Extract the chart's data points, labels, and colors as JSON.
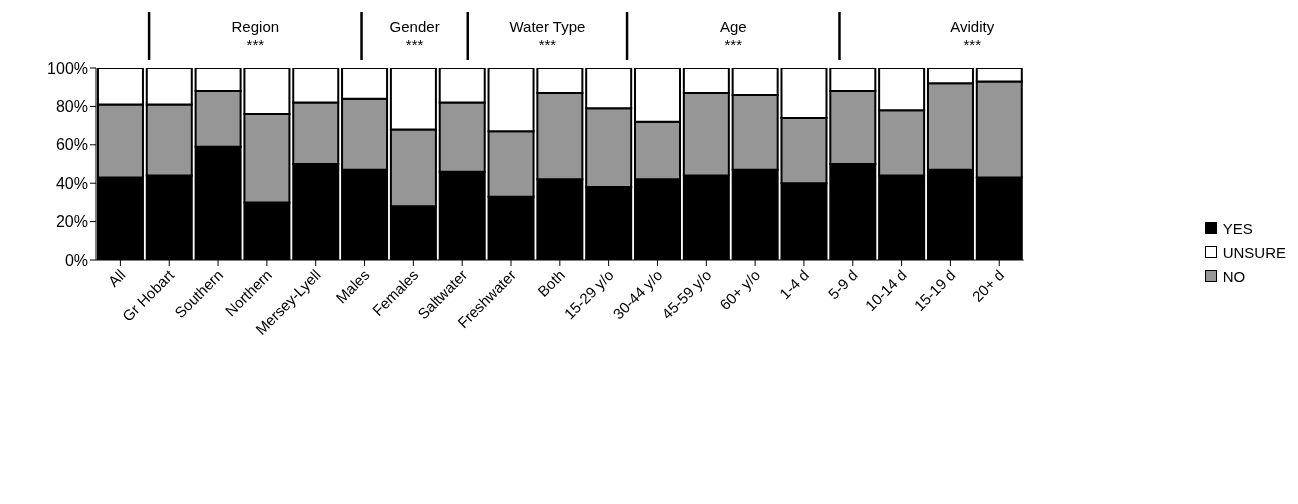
{
  "chart_data": {
    "type": "bar",
    "stacked": true,
    "categories": [
      "All",
      "Gr Hobart",
      "Southern",
      "Northern",
      "Mersey-Lyell",
      "Males",
      "Females",
      "Saltwater",
      "Freshwater",
      "Both",
      "15-29 y/o",
      "30-44 y/o",
      "45-59 y/o",
      "60+ y/o",
      "1-4 d",
      "5-9 d",
      "10-14 d",
      "15-19 d",
      "20+ d"
    ],
    "series": [
      {
        "name": "YES",
        "color": "#000000",
        "values": [
          43,
          44,
          59,
          30,
          50,
          47,
          28,
          46,
          33,
          42,
          38,
          42,
          44,
          47,
          40,
          50,
          44,
          47,
          43
        ]
      },
      {
        "name": "NO",
        "color": "#969696",
        "values": [
          38,
          37,
          29,
          46,
          32,
          37,
          40,
          36,
          34,
          45,
          41,
          30,
          43,
          39,
          34,
          38,
          34,
          45,
          50
        ]
      },
      {
        "name": "UNSURE",
        "color": "#ffffff",
        "values": [
          19,
          19,
          12,
          24,
          18,
          16,
          32,
          18,
          33,
          13,
          21,
          28,
          13,
          14,
          26,
          12,
          22,
          8,
          7
        ]
      }
    ],
    "ylim": [
      0,
      100
    ],
    "yticks": [
      {
        "value": 0,
        "label": "0%"
      },
      {
        "value": 20,
        "label": "20%"
      },
      {
        "value": 40,
        "label": "40%"
      },
      {
        "value": 60,
        "label": "60%"
      },
      {
        "value": 80,
        "label": "80%"
      },
      {
        "value": 100,
        "label": "100%"
      }
    ],
    "legend": "right",
    "annotations": [
      "Region",
      "***",
      "Gender",
      "***",
      "Water Type",
      "***",
      "Age",
      "***",
      "Avidity",
      "***"
    ]
  }
}
